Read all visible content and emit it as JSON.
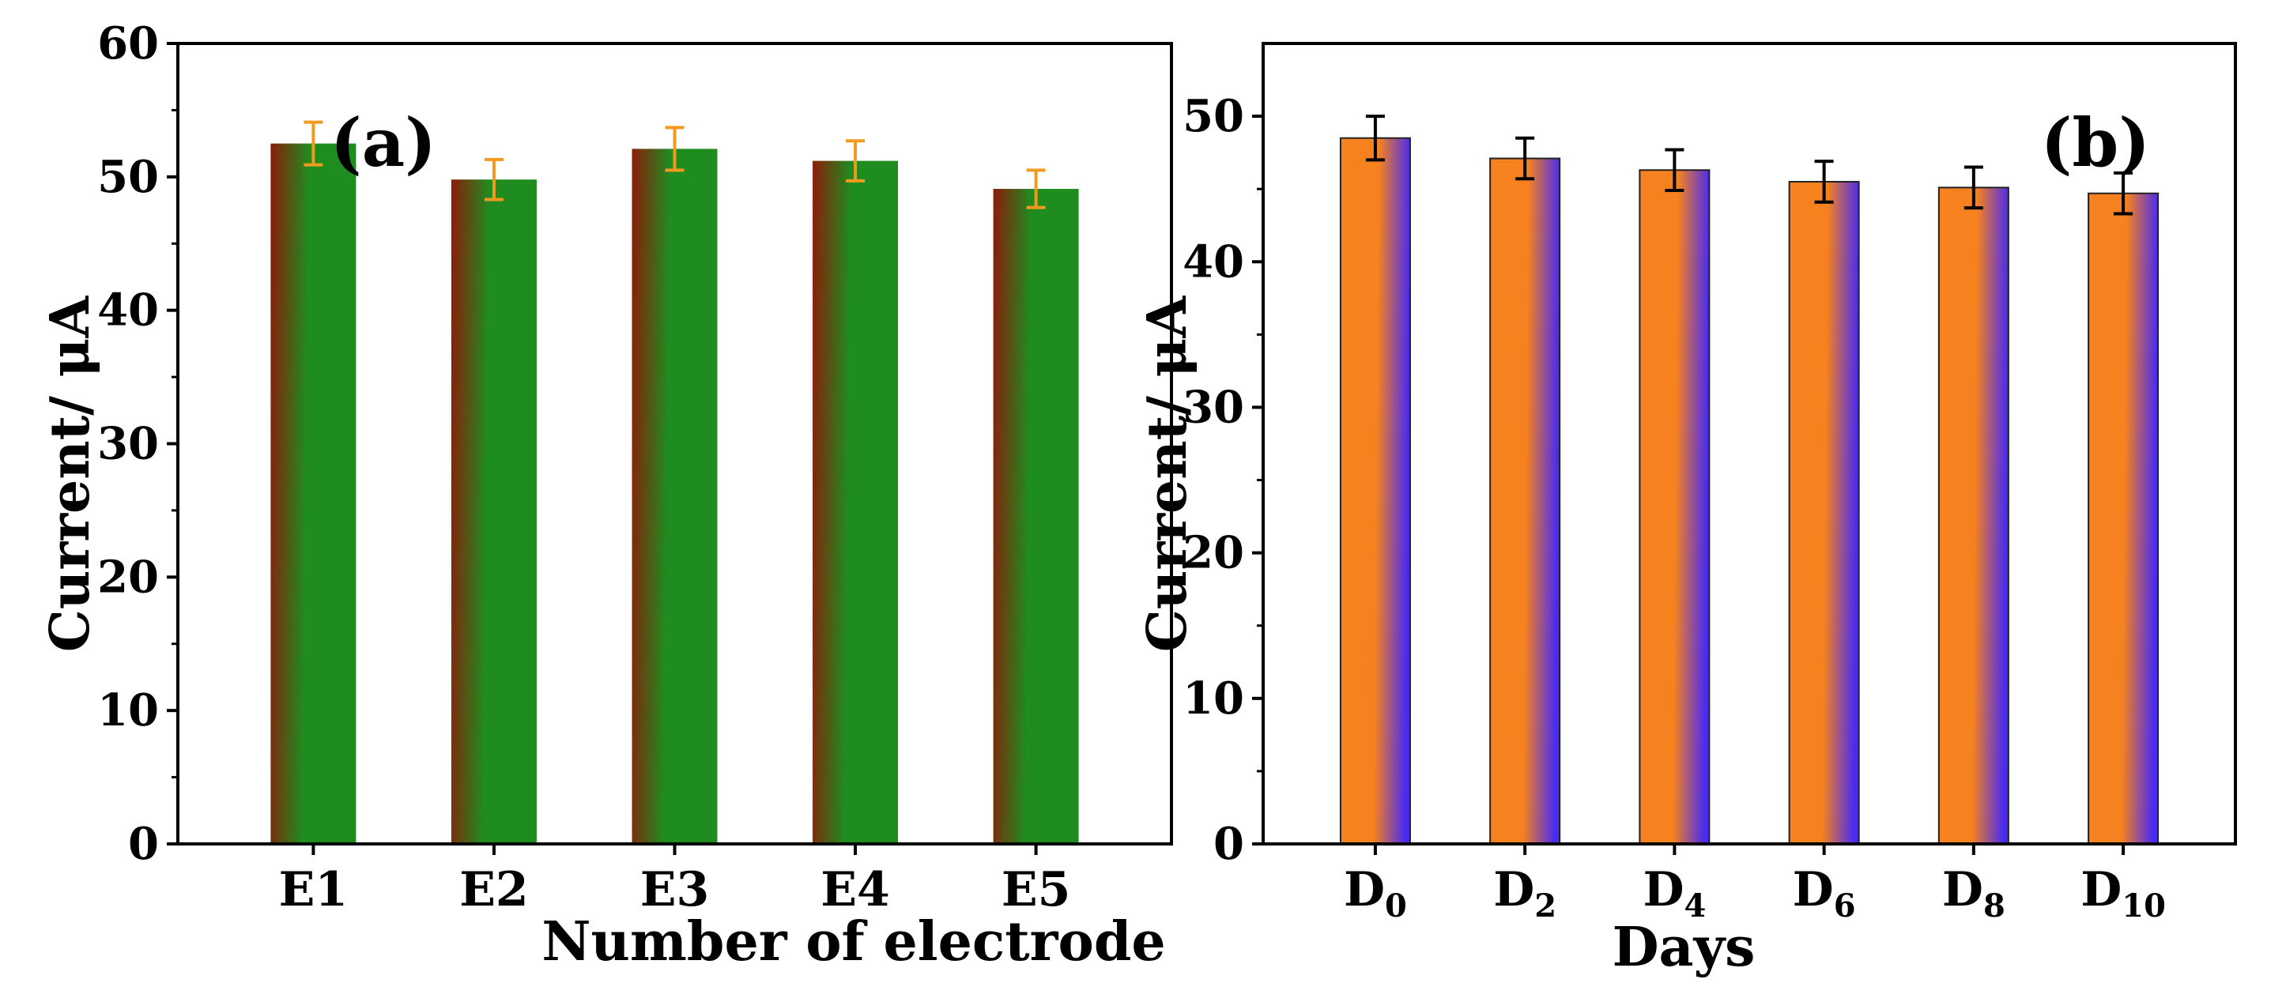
{
  "chart_data": [
    {
      "type": "bar",
      "panel_label": "(a)",
      "categories": [
        "E1",
        "E2",
        "E3",
        "E4",
        "E5"
      ],
      "values": [
        52.5,
        49.8,
        52.1,
        51.2,
        49.1
      ],
      "errors": [
        1.6,
        1.5,
        1.6,
        1.5,
        1.4
      ],
      "xlabel": "Number of electrode",
      "ylabel": "Current/ μA",
      "ylim": [
        0,
        60
      ],
      "yticks": [
        0,
        10,
        20,
        30,
        40,
        50,
        60
      ],
      "bar_colors": [
        "#1f8c1f",
        "#8b1c0a"
      ],
      "error_color": "#f29a1f"
    },
    {
      "type": "bar",
      "panel_label": "(b)",
      "categories": [
        "D0",
        "D2",
        "D4",
        "D6",
        "D8",
        "D10"
      ],
      "category_main": [
        "D",
        "D",
        "D",
        "D",
        "D",
        "D"
      ],
      "category_sub": [
        "0",
        "2",
        "4",
        "6",
        "8",
        "10"
      ],
      "values": [
        48.5,
        47.1,
        46.3,
        45.5,
        45.1,
        44.7
      ],
      "errors": [
        1.5,
        1.4,
        1.4,
        1.4,
        1.4,
        1.4
      ],
      "xlabel": "Days",
      "ylabel": "Current/ μA",
      "ylim": [
        0,
        55
      ],
      "yticks": [
        0,
        10,
        20,
        30,
        40,
        50
      ],
      "bar_colors": [
        "#f5811f",
        "#4a2bf0"
      ],
      "error_color": "#000000"
    }
  ]
}
